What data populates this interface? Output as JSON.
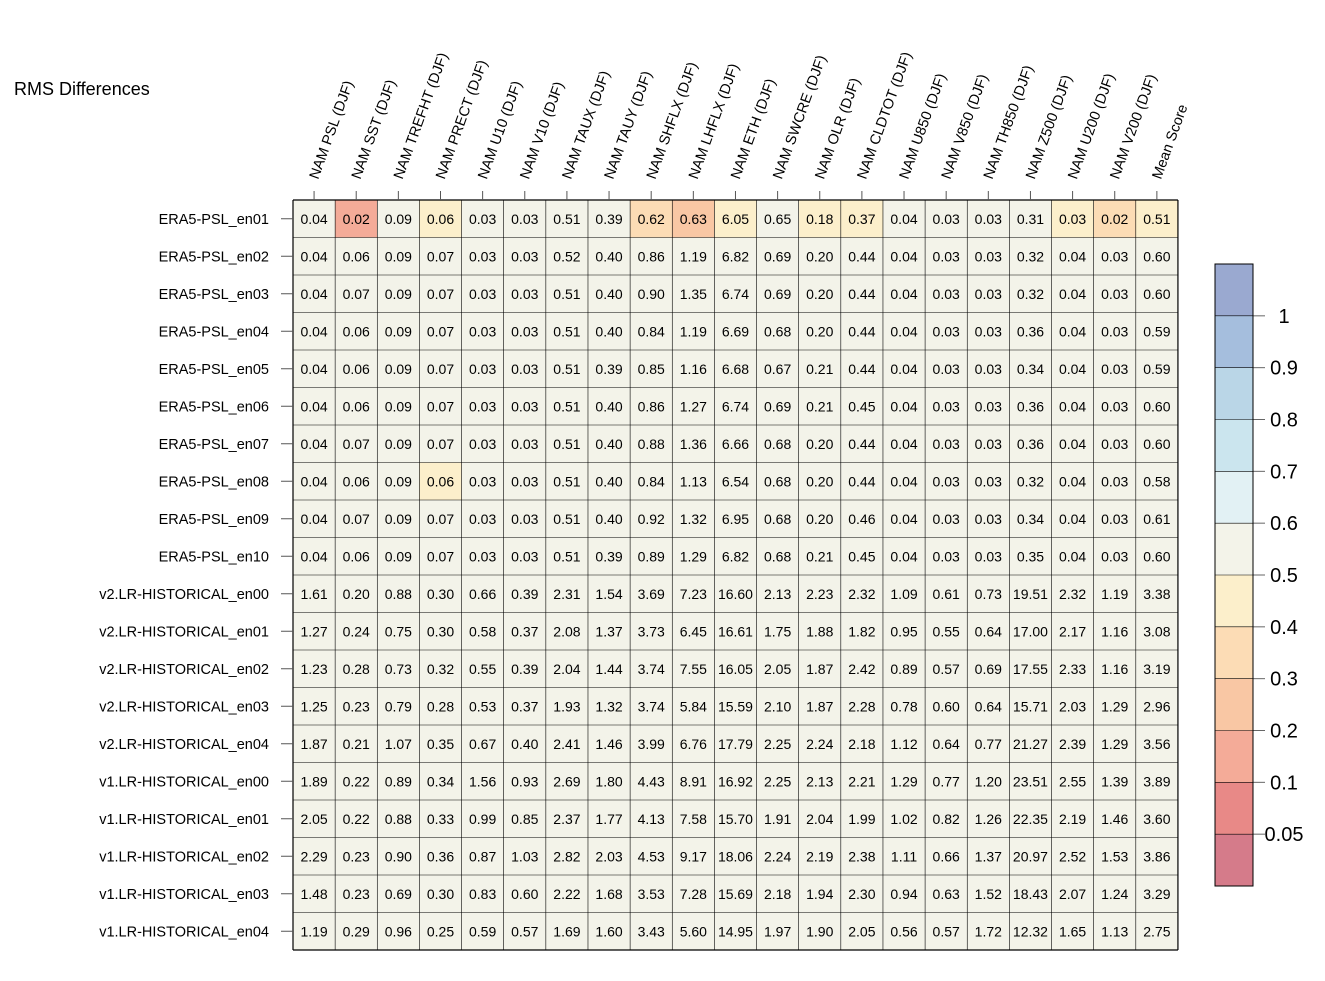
{
  "chart_data": {
    "type": "heatmap",
    "title": "RMS Differences",
    "columns": [
      "NAM PSL (DJF)",
      "NAM SST (DJF)",
      "NAM TREFHT (DJF)",
      "NAM PRECT (DJF)",
      "NAM U10 (DJF)",
      "NAM V10 (DJF)",
      "NAM TAUX (DJF)",
      "NAM TAUY (DJF)",
      "NAM SHFLX (DJF)",
      "NAM LHFLX (DJF)",
      "NAM ETH (DJF)",
      "NAM SWCRE (DJF)",
      "NAM OLR (DJF)",
      "NAM CLDTOT (DJF)",
      "NAM U850 (DJF)",
      "NAM V850 (DJF)",
      "NAM TH850 (DJF)",
      "NAM Z500 (DJF)",
      "NAM U200 (DJF)",
      "NAM V200 (DJF)",
      "Mean Score"
    ],
    "rows": [
      "ERA5-PSL_en01",
      "ERA5-PSL_en02",
      "ERA5-PSL_en03",
      "ERA5-PSL_en04",
      "ERA5-PSL_en05",
      "ERA5-PSL_en06",
      "ERA5-PSL_en07",
      "ERA5-PSL_en08",
      "ERA5-PSL_en09",
      "ERA5-PSL_en10",
      "v2.LR-HISTORICAL_en00",
      "v2.LR-HISTORICAL_en01",
      "v2.LR-HISTORICAL_en02",
      "v2.LR-HISTORICAL_en03",
      "v2.LR-HISTORICAL_en04",
      "v1.LR-HISTORICAL_en00",
      "v1.LR-HISTORICAL_en01",
      "v1.LR-HISTORICAL_en02",
      "v1.LR-HISTORICAL_en03",
      "v1.LR-HISTORICAL_en04"
    ],
    "values": [
      [
        "0.04",
        "0.02",
        "0.09",
        "0.06",
        "0.03",
        "0.03",
        "0.51",
        "0.39",
        "0.62",
        "0.63",
        "6.05",
        "0.65",
        "0.18",
        "0.37",
        "0.04",
        "0.03",
        "0.03",
        "0.31",
        "0.03",
        "0.02",
        "0.51"
      ],
      [
        "0.04",
        "0.06",
        "0.09",
        "0.07",
        "0.03",
        "0.03",
        "0.52",
        "0.40",
        "0.86",
        "1.19",
        "6.82",
        "0.69",
        "0.20",
        "0.44",
        "0.04",
        "0.03",
        "0.03",
        "0.32",
        "0.04",
        "0.03",
        "0.60"
      ],
      [
        "0.04",
        "0.07",
        "0.09",
        "0.07",
        "0.03",
        "0.03",
        "0.51",
        "0.40",
        "0.90",
        "1.35",
        "6.74",
        "0.69",
        "0.20",
        "0.44",
        "0.04",
        "0.03",
        "0.03",
        "0.32",
        "0.04",
        "0.03",
        "0.60"
      ],
      [
        "0.04",
        "0.06",
        "0.09",
        "0.07",
        "0.03",
        "0.03",
        "0.51",
        "0.40",
        "0.84",
        "1.19",
        "6.69",
        "0.68",
        "0.20",
        "0.44",
        "0.04",
        "0.03",
        "0.03",
        "0.36",
        "0.04",
        "0.03",
        "0.59"
      ],
      [
        "0.04",
        "0.06",
        "0.09",
        "0.07",
        "0.03",
        "0.03",
        "0.51",
        "0.39",
        "0.85",
        "1.16",
        "6.68",
        "0.67",
        "0.21",
        "0.44",
        "0.04",
        "0.03",
        "0.03",
        "0.34",
        "0.04",
        "0.03",
        "0.59"
      ],
      [
        "0.04",
        "0.06",
        "0.09",
        "0.07",
        "0.03",
        "0.03",
        "0.51",
        "0.40",
        "0.86",
        "1.27",
        "6.74",
        "0.69",
        "0.21",
        "0.45",
        "0.04",
        "0.03",
        "0.03",
        "0.36",
        "0.04",
        "0.03",
        "0.60"
      ],
      [
        "0.04",
        "0.07",
        "0.09",
        "0.07",
        "0.03",
        "0.03",
        "0.51",
        "0.40",
        "0.88",
        "1.36",
        "6.66",
        "0.68",
        "0.20",
        "0.44",
        "0.04",
        "0.03",
        "0.03",
        "0.36",
        "0.04",
        "0.03",
        "0.60"
      ],
      [
        "0.04",
        "0.06",
        "0.09",
        "0.06",
        "0.03",
        "0.03",
        "0.51",
        "0.40",
        "0.84",
        "1.13",
        "6.54",
        "0.68",
        "0.20",
        "0.44",
        "0.04",
        "0.03",
        "0.03",
        "0.32",
        "0.04",
        "0.03",
        "0.58"
      ],
      [
        "0.04",
        "0.07",
        "0.09",
        "0.07",
        "0.03",
        "0.03",
        "0.51",
        "0.40",
        "0.92",
        "1.32",
        "6.95",
        "0.68",
        "0.20",
        "0.46",
        "0.04",
        "0.03",
        "0.03",
        "0.34",
        "0.04",
        "0.03",
        "0.61"
      ],
      [
        "0.04",
        "0.06",
        "0.09",
        "0.07",
        "0.03",
        "0.03",
        "0.51",
        "0.39",
        "0.89",
        "1.29",
        "6.82",
        "0.68",
        "0.21",
        "0.45",
        "0.04",
        "0.03",
        "0.03",
        "0.35",
        "0.04",
        "0.03",
        "0.60"
      ],
      [
        "1.61",
        "0.20",
        "0.88",
        "0.30",
        "0.66",
        "0.39",
        "2.31",
        "1.54",
        "3.69",
        "7.23",
        "16.60",
        "2.13",
        "2.23",
        "2.32",
        "1.09",
        "0.61",
        "0.73",
        "19.51",
        "2.32",
        "1.19",
        "3.38"
      ],
      [
        "1.27",
        "0.24",
        "0.75",
        "0.30",
        "0.58",
        "0.37",
        "2.08",
        "1.37",
        "3.73",
        "6.45",
        "16.61",
        "1.75",
        "1.88",
        "1.82",
        "0.95",
        "0.55",
        "0.64",
        "17.00",
        "2.17",
        "1.16",
        "3.08"
      ],
      [
        "1.23",
        "0.28",
        "0.73",
        "0.32",
        "0.55",
        "0.39",
        "2.04",
        "1.44",
        "3.74",
        "7.55",
        "16.05",
        "2.05",
        "1.87",
        "2.42",
        "0.89",
        "0.57",
        "0.69",
        "17.55",
        "2.33",
        "1.16",
        "3.19"
      ],
      [
        "1.25",
        "0.23",
        "0.79",
        "0.28",
        "0.53",
        "0.37",
        "1.93",
        "1.32",
        "3.74",
        "5.84",
        "15.59",
        "2.10",
        "1.87",
        "2.28",
        "0.78",
        "0.60",
        "0.64",
        "15.71",
        "2.03",
        "1.29",
        "2.96"
      ],
      [
        "1.87",
        "0.21",
        "1.07",
        "0.35",
        "0.67",
        "0.40",
        "2.41",
        "1.46",
        "3.99",
        "6.76",
        "17.79",
        "2.25",
        "2.24",
        "2.18",
        "1.12",
        "0.64",
        "0.77",
        "21.27",
        "2.39",
        "1.29",
        "3.56"
      ],
      [
        "1.89",
        "0.22",
        "0.89",
        "0.34",
        "1.56",
        "0.93",
        "2.69",
        "1.80",
        "4.43",
        "8.91",
        "16.92",
        "2.25",
        "2.13",
        "2.21",
        "1.29",
        "0.77",
        "1.20",
        "23.51",
        "2.55",
        "1.39",
        "3.89"
      ],
      [
        "2.05",
        "0.22",
        "0.88",
        "0.33",
        "0.99",
        "0.85",
        "2.37",
        "1.77",
        "4.13",
        "7.58",
        "15.70",
        "1.91",
        "2.04",
        "1.99",
        "1.02",
        "0.82",
        "1.26",
        "22.35",
        "2.19",
        "1.46",
        "3.60"
      ],
      [
        "2.29",
        "0.23",
        "0.90",
        "0.36",
        "0.87",
        "1.03",
        "2.82",
        "2.03",
        "4.53",
        "9.17",
        "18.06",
        "2.24",
        "2.19",
        "2.38",
        "1.11",
        "0.66",
        "1.37",
        "20.97",
        "2.52",
        "1.53",
        "3.86"
      ],
      [
        "1.48",
        "0.23",
        "0.69",
        "0.30",
        "0.83",
        "0.60",
        "2.22",
        "1.68",
        "3.53",
        "7.28",
        "15.69",
        "2.18",
        "1.94",
        "2.30",
        "0.94",
        "0.63",
        "1.52",
        "18.43",
        "2.07",
        "1.24",
        "3.29"
      ],
      [
        "1.19",
        "0.29",
        "0.96",
        "0.25",
        "0.59",
        "0.57",
        "1.69",
        "1.60",
        "3.43",
        "5.60",
        "14.95",
        "1.97",
        "1.90",
        "2.05",
        "0.56",
        "0.57",
        "1.72",
        "12.32",
        "1.65",
        "1.13",
        "2.75"
      ]
    ],
    "colorbar": {
      "tick_labels": [
        "1",
        "0.9",
        "0.8",
        "0.7",
        "0.6",
        "0.5",
        "0.4",
        "0.3",
        "0.2",
        "0.1",
        "0.05"
      ],
      "levels": [
        0.05,
        0.1,
        0.2,
        0.3,
        0.4,
        0.5,
        0.6,
        0.7,
        0.8,
        0.9,
        1.0
      ],
      "colors_high_to_low": [
        "#9aa9d0",
        "#a5bedd",
        "#bad6e7",
        "#cbe5ee",
        "#e2f1f4",
        "#f3f3e9",
        "#fcefcb",
        "#fcdcb5",
        "#f9c7a4",
        "#f4ab98",
        "#e88987",
        "#d57b8a"
      ]
    }
  }
}
